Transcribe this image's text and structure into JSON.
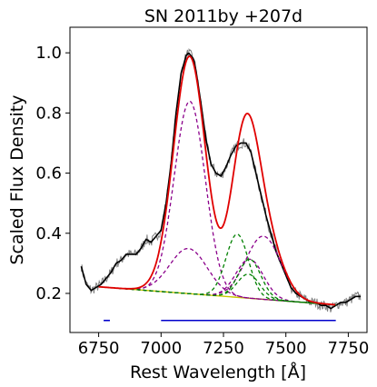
{
  "chart_data": {
    "type": "line",
    "title": "SN 2011by  +207d",
    "xlabel": "Rest Wavelength [Å]",
    "ylabel": "Scaled Flux Density",
    "xlim": [
      6635,
      7825
    ],
    "ylim": [
      0.07,
      1.085
    ],
    "x_ticks": [
      6750,
      7000,
      7250,
      7500,
      7750
    ],
    "y_ticks": [
      0.2,
      0.4,
      0.6,
      0.8,
      1.0
    ],
    "x_tick_labels": [
      "6750",
      "7000",
      "7250",
      "7500",
      "7750"
    ],
    "y_tick_labels": [
      "0.2",
      "0.4",
      "0.6",
      "0.8",
      "1.0"
    ],
    "grid": false,
    "colors": {
      "raw_spectrum": "#808080",
      "smoothed_spectrum": "#000000",
      "total_fit": "#e00000",
      "continuum": "#c8c800",
      "purple_components": "#8b008b",
      "green_components": "#008000",
      "fit_regions": "#0000cc"
    },
    "observed_spectrum": {
      "x": [
        6680,
        6700,
        6720,
        6740,
        6760,
        6780,
        6800,
        6820,
        6840,
        6860,
        6880,
        6900,
        6920,
        6940,
        6960,
        6980,
        7000,
        7020,
        7040,
        7060,
        7080,
        7100,
        7110,
        7120,
        7130,
        7140,
        7160,
        7180,
        7200,
        7220,
        7240,
        7260,
        7280,
        7300,
        7320,
        7340,
        7360,
        7380,
        7400,
        7420,
        7440,
        7460,
        7480,
        7500,
        7520,
        7540,
        7560,
        7580,
        7600,
        7620,
        7640,
        7660,
        7680,
        7700,
        7720,
        7740,
        7760,
        7780,
        7800
      ],
      "y": [
        0.29,
        0.23,
        0.21,
        0.22,
        0.23,
        0.25,
        0.27,
        0.3,
        0.31,
        0.33,
        0.33,
        0.33,
        0.35,
        0.38,
        0.37,
        0.39,
        0.41,
        0.5,
        0.63,
        0.8,
        0.93,
        0.99,
        1.0,
        0.99,
        0.98,
        0.94,
        0.83,
        0.71,
        0.63,
        0.6,
        0.59,
        0.62,
        0.66,
        0.69,
        0.7,
        0.7,
        0.67,
        0.6,
        0.53,
        0.46,
        0.4,
        0.34,
        0.3,
        0.26,
        0.22,
        0.2,
        0.19,
        0.18,
        0.17,
        0.17,
        0.16,
        0.16,
        0.15,
        0.16,
        0.17,
        0.17,
        0.18,
        0.19,
        0.19
      ]
    },
    "continuum": {
      "x": [
        6750,
        7700
      ],
      "y": [
        0.222,
        0.162
      ]
    },
    "fit_range": [
      6750,
      7700
    ],
    "components": [
      {
        "color": "purple",
        "center": 7115,
        "amplitude": 0.64,
        "sigma": 62
      },
      {
        "color": "purple",
        "center": 7110,
        "amplitude": 0.15,
        "sigma": 75
      },
      {
        "color": "purple",
        "center": 7410,
        "amplitude": 0.21,
        "sigma": 70
      },
      {
        "color": "purple",
        "center": 7355,
        "amplitude": 0.13,
        "sigma": 55
      },
      {
        "color": "green",
        "center": 7305,
        "amplitude": 0.21,
        "sigma": 45
      },
      {
        "color": "green",
        "center": 7355,
        "amplitude": 0.13,
        "sigma": 45
      },
      {
        "color": "green",
        "center": 7350,
        "amplitude": 0.08,
        "sigma": 45
      }
    ],
    "fit_regions": [
      [
        6770,
        6795
      ],
      [
        7000,
        7700
      ]
    ],
    "fit_region_y": 0.11
  }
}
